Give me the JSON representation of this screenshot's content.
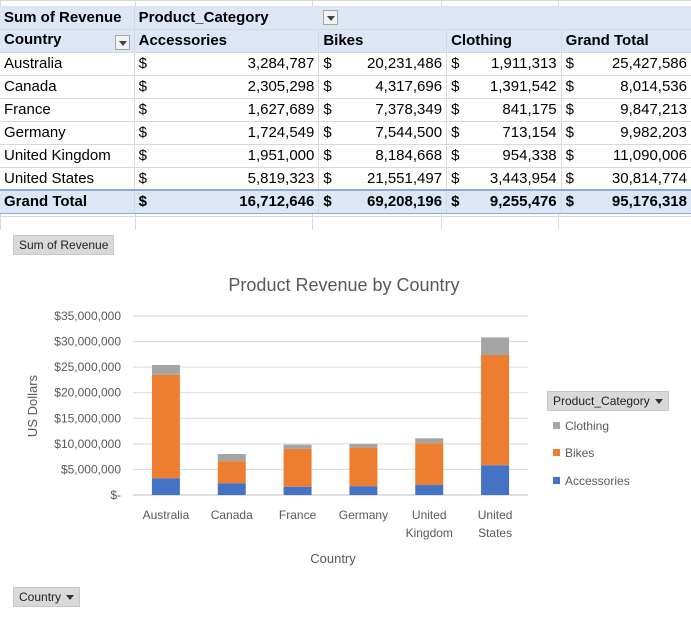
{
  "pivot": {
    "value_label": "Sum of Revenue",
    "column_field": "Product_Category",
    "row_field": "Country",
    "columns": [
      "Accessories",
      "Bikes",
      "Clothing",
      "Grand Total"
    ],
    "currency": "$",
    "rows": [
      {
        "country": "Australia",
        "values": [
          "3,284,787",
          "20,231,486",
          "1,911,313",
          "25,427,586"
        ]
      },
      {
        "country": "Canada",
        "values": [
          "2,305,298",
          "4,317,696",
          "1,391,542",
          "8,014,536"
        ]
      },
      {
        "country": "France",
        "values": [
          "1,627,689",
          "7,378,349",
          "841,175",
          "9,847,213"
        ]
      },
      {
        "country": "Germany",
        "values": [
          "1,724,549",
          "7,544,500",
          "713,154",
          "9,982,203"
        ]
      },
      {
        "country": "United Kingdom",
        "values": [
          "1,951,000",
          "8,184,668",
          "954,338",
          "11,090,006"
        ]
      },
      {
        "country": "United States",
        "values": [
          "5,819,323",
          "21,551,497",
          "3,443,954",
          "30,814,774"
        ]
      }
    ],
    "grand_total": {
      "label": "Grand Total",
      "values": [
        "16,712,646",
        "69,208,196",
        "9,255,476",
        "95,176,318"
      ]
    }
  },
  "chart_buttons": {
    "values_button": "Sum of Revenue",
    "legend_button": "Product_Category",
    "axis_button": "Country"
  },
  "chart_data": {
    "type": "bar",
    "stacked": true,
    "title": "Product Revenue by Country",
    "xlabel": "Country",
    "ylabel": "US Dollars",
    "categories": [
      "Australia",
      "Canada",
      "France",
      "Germany",
      "United Kingdom",
      "United States"
    ],
    "category_lines": [
      [
        "Australia"
      ],
      [
        "Canada"
      ],
      [
        "France"
      ],
      [
        "Germany"
      ],
      [
        "United",
        "Kingdom"
      ],
      [
        "United",
        "States"
      ]
    ],
    "series": [
      {
        "name": "Accessories",
        "color": "#4472c4",
        "values": [
          3284787,
          2305298,
          1627689,
          1724549,
          1951000,
          5819323
        ]
      },
      {
        "name": "Bikes",
        "color": "#ed7d31",
        "values": [
          20231486,
          4317696,
          7378349,
          7544500,
          8184668,
          21551497
        ]
      },
      {
        "name": "Clothing",
        "color": "#a5a5a5",
        "values": [
          1911313,
          1391542,
          841175,
          713154,
          954338,
          3443954
        ]
      }
    ],
    "ylim": [
      0,
      35000000
    ],
    "yticks": [
      0,
      5000000,
      10000000,
      15000000,
      20000000,
      25000000,
      30000000,
      35000000
    ],
    "ytick_labels": [
      "$-",
      "$5,000,000",
      "$10,000,000",
      "$15,000,000",
      "$20,000,000",
      "$25,000,000",
      "$30,000,000",
      "$35,000,000"
    ],
    "grid": true,
    "legend_position": "right",
    "legend_order": [
      "Clothing",
      "Bikes",
      "Accessories"
    ]
  }
}
